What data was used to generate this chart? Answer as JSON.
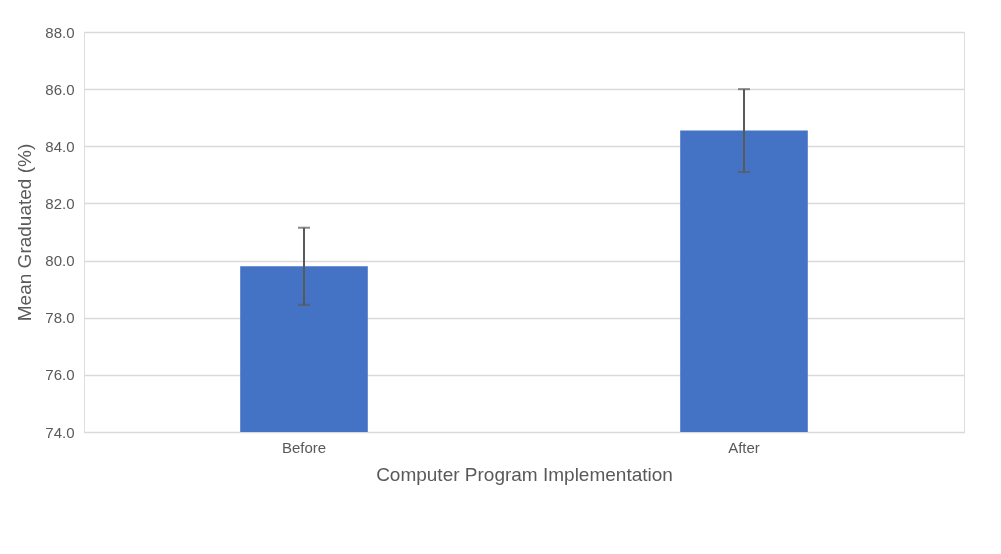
{
  "chart_data": {
    "type": "bar",
    "xlabel": "Computer Program Implementation",
    "ylabel": "Mean Graduated (%)",
    "categories": [
      "Before",
      "After"
    ],
    "values": [
      79.8,
      84.55
    ],
    "color": "#4472c4",
    "errors": [
      [
        78.45,
        81.15
      ],
      [
        83.1,
        86.0
      ]
    ],
    "ylim": [
      74,
      88
    ],
    "yticks": [
      {
        "value": 74,
        "label": "74.0"
      },
      {
        "value": 76,
        "label": "76.0"
      },
      {
        "value": 78,
        "label": "78.0"
      },
      {
        "value": 80,
        "label": "80.0"
      },
      {
        "value": 82,
        "label": "82.0"
      },
      {
        "value": 84,
        "label": "84.0"
      },
      {
        "value": 86,
        "label": "86.0"
      },
      {
        "value": 88,
        "label": "88.0"
      }
    ],
    "grid": "y"
  }
}
